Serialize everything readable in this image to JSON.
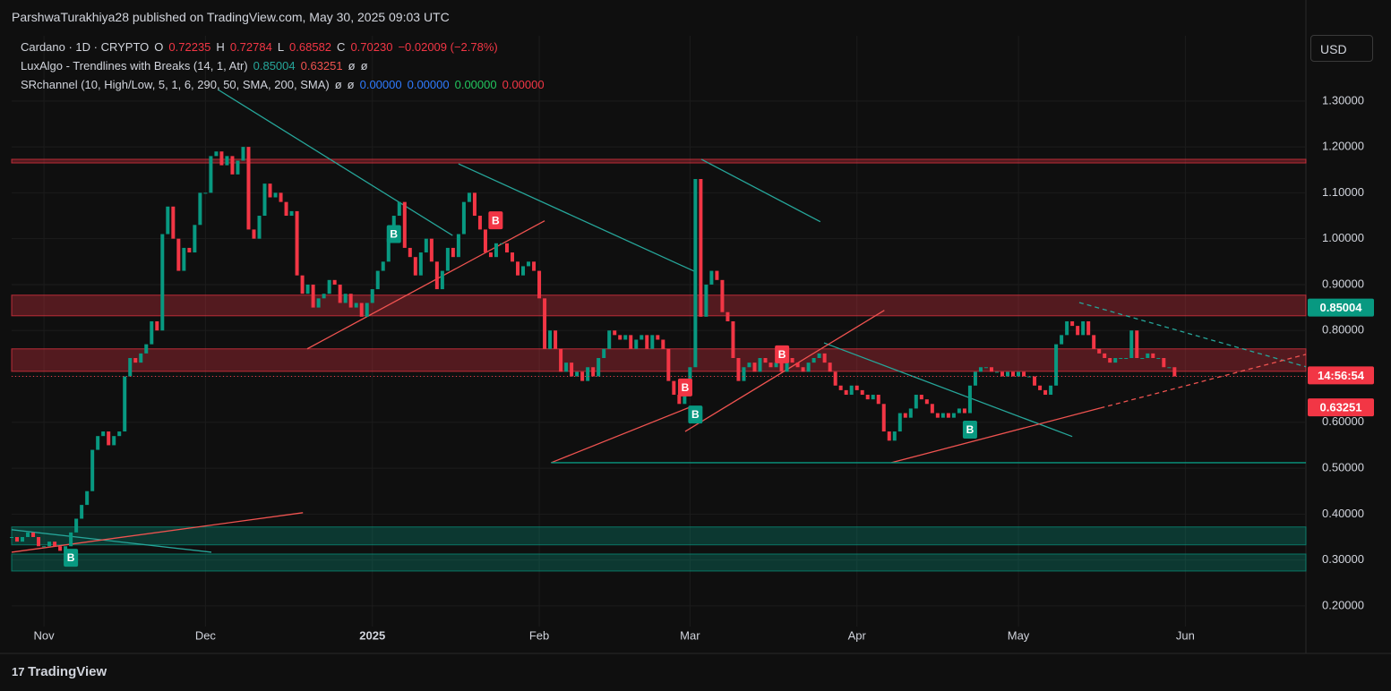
{
  "header": {
    "published": "ParshwaTurakhiya28 published on TradingView.com, May 30, 2025 09:03 UTC",
    "currency_button": "USD",
    "footer_logo": "TradingView"
  },
  "legend": [
    [
      {
        "text": "Cardano · 1D · CRYPTO",
        "color": "#d1d4dc"
      },
      {
        "text": "O",
        "color": "#d1d4dc"
      },
      {
        "text": "0.72235",
        "color": "#f23645"
      },
      {
        "text": "H",
        "color": "#d1d4dc"
      },
      {
        "text": "0.72784",
        "color": "#f23645"
      },
      {
        "text": "L",
        "color": "#d1d4dc"
      },
      {
        "text": "0.68582",
        "color": "#f23645"
      },
      {
        "text": "C",
        "color": "#d1d4dc"
      },
      {
        "text": "0.70230",
        "color": "#f23645"
      },
      {
        "text": "−0.02009 (−2.78%)",
        "color": "#f23645"
      }
    ],
    [
      {
        "text": "LuxAlgo - Trendlines with Breaks (14, 1, Atr)",
        "color": "#d1d4dc"
      },
      {
        "text": "0.85004",
        "color": "#26a69a"
      },
      {
        "text": "0.63251",
        "color": "#ef5350"
      },
      {
        "text": "ø",
        "color": "#d1d4dc"
      },
      {
        "text": "ø",
        "color": "#d1d4dc"
      }
    ],
    [
      {
        "text": "SRchannel (10, High/Low, 5, 1, 6, 290, 50, SMA, 200, SMA)",
        "color": "#d1d4dc"
      },
      {
        "text": "ø",
        "color": "#d1d4dc"
      },
      {
        "text": "ø",
        "color": "#d1d4dc"
      },
      {
        "text": "0.00000",
        "color": "#2f7bff"
      },
      {
        "text": "0.00000",
        "color": "#2f7bff"
      },
      {
        "text": "0.00000",
        "color": "#22c55e"
      },
      {
        "text": "0.00000",
        "color": "#f23645"
      }
    ]
  ],
  "chart_data": {
    "type": "candlestick",
    "up_color": "#089981",
    "down_color": "#f23645",
    "xlim": [
      0,
      240.4
    ],
    "ylim": [
      0.155,
      1.442
    ],
    "xticks": [
      {
        "value": 6,
        "label": "Nov"
      },
      {
        "value": 36,
        "label": "Dec"
      },
      {
        "value": 67,
        "label": "2025"
      },
      {
        "value": 98,
        "label": "Feb"
      },
      {
        "value": 126,
        "label": "Mar"
      },
      {
        "value": 157,
        "label": "Apr"
      },
      {
        "value": 187,
        "label": "May"
      },
      {
        "value": 218,
        "label": "Jun"
      }
    ],
    "yticks": [
      {
        "value": 0.2,
        "label": "0.20000"
      },
      {
        "value": 0.3,
        "label": "0.30000"
      },
      {
        "value": 0.4,
        "label": "0.40000"
      },
      {
        "value": 0.5,
        "label": "0.50000"
      },
      {
        "value": 0.6,
        "label": "0.60000"
      },
      {
        "value": 0.7,
        "label": "0.70000"
      },
      {
        "value": 0.8,
        "label": "0.80000"
      },
      {
        "value": 0.9,
        "label": "0.90000"
      },
      {
        "value": 1,
        "label": "1.00000"
      },
      {
        "value": 1.1,
        "label": "1.10000"
      },
      {
        "value": 1.2,
        "label": "1.20000"
      },
      {
        "value": 1.3,
        "label": "1.30000"
      }
    ],
    "grid": true,
    "close": [
      0.35,
      0.34,
      0.35,
      0.36,
      0.35,
      0.33,
      0.33,
      0.34,
      0.33,
      0.32,
      0.33,
      0.36,
      0.39,
      0.42,
      0.45,
      0.54,
      0.57,
      0.58,
      0.55,
      0.57,
      0.58,
      0.7,
      0.74,
      0.73,
      0.75,
      0.77,
      0.82,
      0.8,
      1.01,
      1.07,
      1.0,
      0.93,
      0.98,
      0.97,
      1.03,
      1.1,
      1.1,
      1.18,
      1.19,
      1.16,
      1.18,
      1.14,
      1.17,
      1.2,
      1.02,
      1.0,
      1.05,
      1.12,
      1.09,
      1.1,
      1.08,
      1.05,
      1.06,
      0.92,
      0.88,
      0.9,
      0.85,
      0.87,
      0.88,
      0.91,
      0.9,
      0.86,
      0.88,
      0.85,
      0.86,
      0.83,
      0.86,
      0.89,
      0.93,
      0.95,
      1.0,
      1.05,
      1.08,
      0.98,
      0.96,
      0.92,
      0.97,
      1.0,
      0.95,
      0.89,
      0.93,
      0.98,
      0.96,
      1.01,
      1.08,
      1.1,
      1.05,
      1.02,
      0.97,
      0.96,
      0.99,
      0.99,
      0.97,
      0.95,
      0.92,
      0.94,
      0.95,
      0.93,
      0.87,
      0.76,
      0.8,
      0.76,
      0.71,
      0.73,
      0.7,
      0.71,
      0.69,
      0.72,
      0.7,
      0.74,
      0.76,
      0.8,
      0.79,
      0.78,
      0.79,
      0.76,
      0.78,
      0.79,
      0.76,
      0.79,
      0.78,
      0.76,
      0.69,
      0.66,
      0.64,
      0.66,
      0.72,
      1.13,
      0.83,
      0.9,
      0.93,
      0.91,
      0.84,
      0.82,
      0.74,
      0.69,
      0.72,
      0.73,
      0.71,
      0.74,
      0.73,
      0.72,
      0.73,
      0.71,
      0.74,
      0.73,
      0.72,
      0.71,
      0.73,
      0.74,
      0.75,
      0.73,
      0.71,
      0.68,
      0.67,
      0.66,
      0.68,
      0.67,
      0.66,
      0.65,
      0.66,
      0.64,
      0.58,
      0.56,
      0.58,
      0.62,
      0.61,
      0.63,
      0.66,
      0.65,
      0.64,
      0.62,
      0.61,
      0.62,
      0.61,
      0.62,
      0.63,
      0.62,
      0.68,
      0.71,
      0.72,
      0.72,
      0.71,
      0.71,
      0.7,
      0.71,
      0.7,
      0.71,
      0.7,
      0.7,
      0.68,
      0.67,
      0.66,
      0.68,
      0.77,
      0.79,
      0.82,
      0.81,
      0.79,
      0.82,
      0.79,
      0.76,
      0.75,
      0.74,
      0.73,
      0.74,
      0.74,
      0.74,
      0.8,
      0.74,
      0.74,
      0.75,
      0.74,
      0.74,
      0.72,
      0.72,
      0.7
    ],
    "zones": [
      {
        "range": [
          1.165,
          1.173
        ],
        "color": "#f23645"
      },
      {
        "range": [
          0.832,
          0.877
        ],
        "color": "#f23645"
      },
      {
        "range": [
          0.711,
          0.76
        ],
        "color": "#f23645"
      },
      {
        "range": [
          0.333,
          0.372
        ],
        "color": "#089981"
      },
      {
        "range": [
          0.276,
          0.313
        ],
        "color": "#089981"
      }
    ],
    "trendlines": [
      {
        "color": "#26a69a",
        "dashed": false,
        "points": [
          [
            38.3,
            1.325
          ],
          [
            81.9,
            1.007
          ]
        ]
      },
      {
        "color": "#26a69a",
        "dashed": false,
        "points": [
          [
            83,
            1.163
          ],
          [
            126.8,
            0.929
          ]
        ]
      },
      {
        "color": "#26a69a",
        "dashed": false,
        "points": [
          [
            128.1,
            1.173
          ],
          [
            150.2,
            1.037
          ]
        ]
      },
      {
        "color": "#26a69a",
        "dashed": false,
        "points": [
          [
            150.9,
            0.773
          ],
          [
            197,
            0.569
          ]
        ]
      },
      {
        "color": "#26a69a",
        "dashed": true,
        "points": [
          [
            198.3,
            0.861
          ],
          [
            240.4,
            0.721
          ]
        ]
      },
      {
        "color": "#26a69a",
        "dashed": false,
        "points": [
          [
            0,
            0.366
          ],
          [
            37.1,
            0.317
          ]
        ]
      },
      {
        "color": "#ef5350",
        "dashed": false,
        "points": [
          [
            0,
            0.317
          ],
          [
            54.1,
            0.403
          ]
        ]
      },
      {
        "color": "#ef5350",
        "dashed": false,
        "points": [
          [
            54.9,
            0.76
          ],
          [
            99,
            1.039
          ]
        ]
      },
      {
        "color": "#ef5350",
        "dashed": false,
        "points": [
          [
            100.2,
            0.512
          ],
          [
            126,
            0.633
          ]
        ]
      },
      {
        "color": "#ef5350",
        "dashed": false,
        "points": [
          [
            125.1,
            0.58
          ],
          [
            162.1,
            0.844
          ]
        ]
      },
      {
        "color": "#ef5350",
        "dashed": false,
        "points": [
          [
            163.4,
            0.512
          ],
          [
            202.2,
            0.631
          ]
        ]
      },
      {
        "color": "#ef5350",
        "dashed": true,
        "points": [
          [
            202.2,
            0.631
          ],
          [
            240.4,
            0.748
          ]
        ]
      },
      {
        "color": "#089981",
        "dashed": false,
        "points": [
          [
            100.2,
            0.512
          ],
          [
            240.4,
            0.512
          ]
        ]
      }
    ],
    "break_labels": [
      {
        "text": "B",
        "color": "#089981",
        "x": 71,
        "y": 1.01
      },
      {
        "text": "B",
        "color": "#f23645",
        "x": 89.9,
        "y": 1.04
      },
      {
        "text": "B",
        "color": "#f23645",
        "x": 125.1,
        "y": 0.676
      },
      {
        "text": "B",
        "color": "#089981",
        "x": 127,
        "y": 0.617
      },
      {
        "text": "B",
        "color": "#f23645",
        "x": 143.1,
        "y": 0.748
      },
      {
        "text": "B",
        "color": "#089981",
        "x": 178,
        "y": 0.584
      },
      {
        "text": "B",
        "color": "#089981",
        "x": 11,
        "y": 0.305
      }
    ],
    "price_tags": [
      {
        "label": "0.85004",
        "value": 0.85004,
        "color": "#089981"
      },
      {
        "label": "14:56:54",
        "value": 0.7023,
        "color": "#f23645"
      },
      {
        "label": "0.63251",
        "value": 0.63251,
        "color": "#f23645"
      }
    ]
  }
}
